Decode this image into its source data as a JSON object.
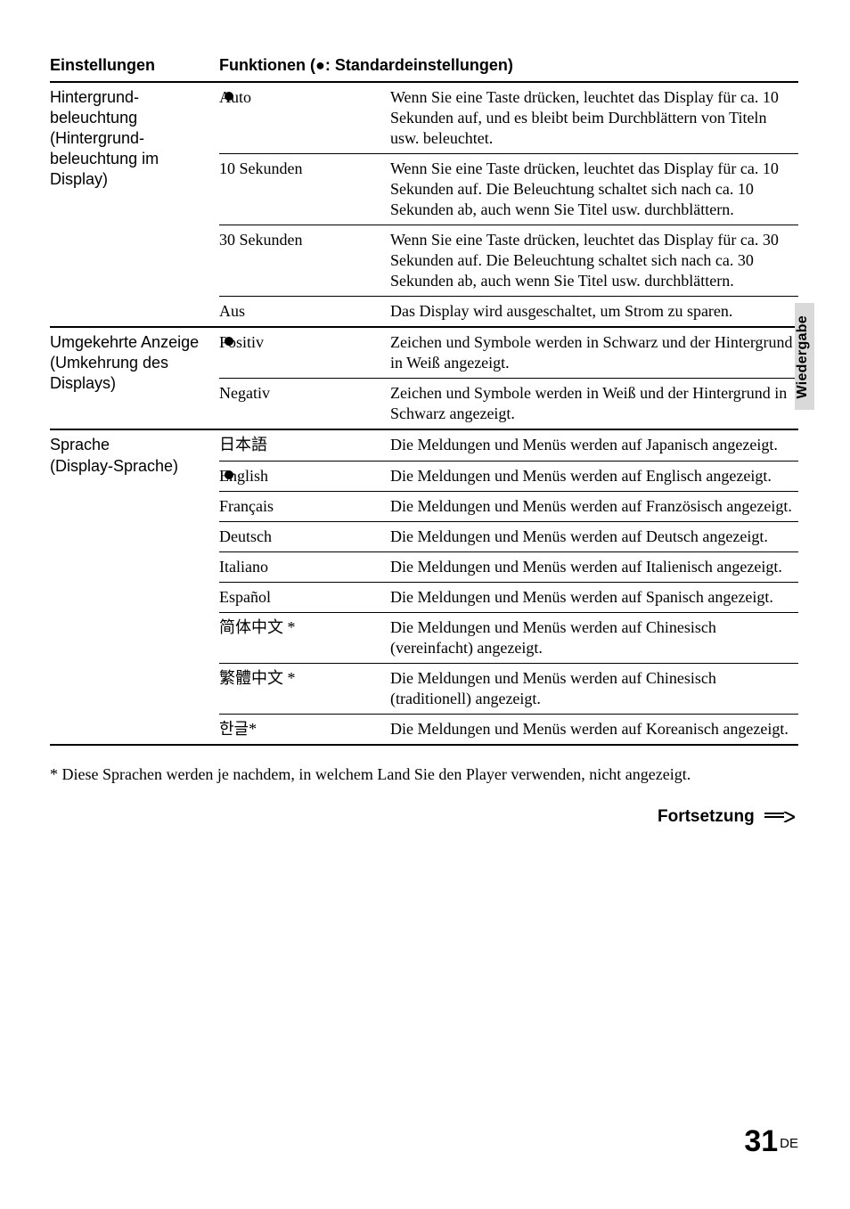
{
  "header": {
    "col_setting": "Einstellungen",
    "col_function_prefix": "Funktionen (",
    "col_function_bullet": "●",
    "col_function_suffix": ": Standardeinstellungen)"
  },
  "groups": [
    {
      "setting": "Hintergrund-\nbeleuchtung\n(Hintergrund-\nbeleuchtung im\nDisplay)",
      "rows": [
        {
          "option": "Auto",
          "default": true,
          "desc": "Wenn Sie eine Taste drücken, leuchtet das Display für ca. 10 Sekunden auf, und es bleibt beim Durchblättern von Titeln usw. beleuchtet."
        },
        {
          "option": "10 Sekunden",
          "default": false,
          "desc": "Wenn Sie eine Taste drücken, leuchtet das Display für ca. 10 Sekunden auf. Die Beleuchtung schaltet sich nach ca. 10 Sekunden ab, auch wenn Sie Titel usw. durchblättern."
        },
        {
          "option": "30 Sekunden",
          "default": false,
          "desc": "Wenn Sie eine Taste drücken, leuchtet das Display für ca. 30 Sekunden auf. Die Beleuchtung schaltet sich nach ca. 30 Sekunden ab, auch wenn Sie Titel usw. durchblättern."
        },
        {
          "option": "Aus",
          "default": false,
          "desc": "Das Display wird ausgeschaltet, um Strom zu sparen."
        }
      ]
    },
    {
      "setting": "Umgekehrte Anzeige\n(Umkehrung des\nDisplays)",
      "rows": [
        {
          "option": "Positiv",
          "default": true,
          "desc": "Zeichen und Symbole werden in Schwarz und der Hintergrund in Weiß angezeigt."
        },
        {
          "option": "Negativ",
          "default": false,
          "desc": "Zeichen und Symbole werden in Weiß und der Hintergrund in Schwarz angezeigt."
        }
      ]
    },
    {
      "setting": "Sprache\n(Display-Sprache)",
      "rows": [
        {
          "option": "日本語",
          "default": false,
          "desc": "Die Meldungen und Menüs werden auf Japanisch angezeigt."
        },
        {
          "option": "English",
          "default": true,
          "desc": "Die Meldungen und Menüs werden auf Englisch angezeigt."
        },
        {
          "option": "Français",
          "default": false,
          "desc": "Die Meldungen und Menüs werden auf Französisch angezeigt."
        },
        {
          "option": "Deutsch",
          "default": false,
          "desc": "Die Meldungen und Menüs werden auf Deutsch angezeigt."
        },
        {
          "option": "Italiano",
          "default": false,
          "desc": "Die Meldungen und Menüs werden auf Italienisch angezeigt."
        },
        {
          "option": "Español",
          "default": false,
          "desc": "Die Meldungen und Menüs werden auf Spanisch angezeigt."
        },
        {
          "option": "简体中文 *",
          "default": false,
          "desc": "Die Meldungen und Menüs werden auf Chinesisch (vereinfacht) angezeigt."
        },
        {
          "option": "繁體中文 *",
          "default": false,
          "desc": "Die Meldungen und Menüs werden auf Chinesisch (traditionell) angezeigt."
        },
        {
          "option": "한글*",
          "default": false,
          "desc": "Die Meldungen und Menüs werden auf Koreanisch angezeigt."
        }
      ]
    }
  ],
  "footnote": "* Diese Sprachen werden je nachdem, in welchem Land Sie den Player verwenden, nicht angezeigt.",
  "continuation": "Fortsetzung",
  "side_tab": "Wiedergabe",
  "page_number": "31",
  "page_lang": "DE"
}
